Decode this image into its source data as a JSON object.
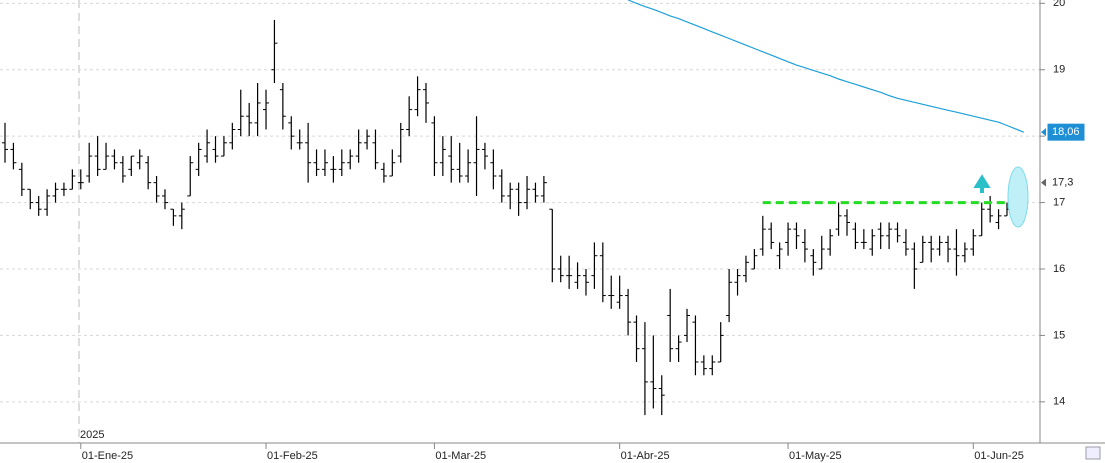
{
  "chart_data": {
    "type": "ohlc",
    "color": "#000000",
    "year_label": "2025",
    "categories": [
      null,
      null,
      null,
      null,
      null,
      null,
      null,
      null,
      null,
      "01-Ene-25",
      null,
      null,
      null,
      null,
      null,
      null,
      null,
      null,
      null,
      null,
      null,
      null,
      null,
      null,
      null,
      null,
      null,
      null,
      null,
      null,
      null,
      "01-Feb-25",
      null,
      null,
      null,
      null,
      null,
      null,
      null,
      null,
      null,
      null,
      null,
      null,
      null,
      null,
      null,
      null,
      null,
      null,
      null,
      "01-Mar-25",
      null,
      null,
      null,
      null,
      null,
      null,
      null,
      null,
      null,
      null,
      null,
      null,
      null,
      null,
      null,
      null,
      null,
      null,
      null,
      null,
      null,
      "01-Abr-25",
      null,
      null,
      null,
      null,
      null,
      null,
      null,
      null,
      null,
      null,
      null,
      null,
      null,
      null,
      null,
      null,
      null,
      null,
      null,
      "01-May-25",
      null,
      null,
      null,
      null,
      null,
      null,
      null,
      null,
      null,
      null,
      null,
      null,
      null,
      null,
      null,
      null,
      null,
      null,
      null,
      null,
      null,
      "01-Jun-25",
      null,
      null,
      null,
      null,
      null,
      null
    ],
    "open": [
      17.9,
      17.8,
      17.5,
      17.2,
      17.0,
      16.9,
      17.1,
      17.2,
      17.2,
      17.3,
      17.4,
      17.7,
      17.5,
      17.7,
      17.6,
      17.5,
      17.6,
      17.6,
      17.3,
      17.1,
      16.9,
      16.8,
      17.1,
      17.5,
      17.7,
      17.8,
      17.7,
      17.9,
      18.1,
      18.3,
      18.2,
      18.4,
      19.0,
      18.7,
      18.2,
      17.9,
      17.9,
      17.6,
      17.5,
      17.5,
      17.5,
      17.6,
      17.7,
      17.9,
      17.9,
      17.5,
      17.4,
      17.7,
      18.1,
      18.4,
      18.7,
      18.2,
      17.6,
      17.7,
      17.5,
      17.4,
      17.6,
      17.8,
      17.6,
      17.4,
      17.1,
      17.2,
      17.0,
      17.2,
      17.1,
      16.9,
      16.0,
      15.9,
      15.8,
      15.9,
      15.9,
      16.2,
      15.6,
      15.5,
      15.6,
      15.2,
      14.8,
      14.3,
      14.2,
      15.3,
      14.8,
      15.0,
      15.2,
      14.6,
      14.5,
      14.6,
      15.3,
      15.8,
      15.9,
      16.0,
      16.3,
      16.6,
      16.2,
      16.4,
      16.6,
      16.4,
      16.2,
      16.0,
      16.3,
      16.6,
      16.8,
      16.6,
      16.4,
      16.3,
      16.6,
      16.5,
      16.6,
      16.4,
      16.3,
      16.1,
      16.4,
      16.3,
      16.4,
      16.3,
      16.2,
      16.3,
      16.5,
      16.9,
      16.7,
      16.8,
      16.9,
      17.0
    ],
    "high": [
      18.2,
      17.9,
      17.6,
      17.2,
      17.1,
      17.2,
      17.3,
      17.3,
      17.5,
      17.5,
      17.9,
      18.0,
      17.9,
      17.8,
      17.7,
      17.7,
      17.8,
      17.7,
      17.4,
      17.2,
      16.9,
      17.0,
      17.7,
      17.9,
      18.1,
      18.0,
      18.0,
      18.2,
      18.7,
      18.5,
      18.8,
      18.7,
      19.75,
      18.8,
      18.3,
      18.1,
      18.2,
      17.8,
      17.8,
      17.7,
      17.8,
      17.8,
      18.1,
      18.1,
      18.1,
      17.6,
      17.8,
      18.2,
      18.6,
      18.9,
      18.8,
      18.3,
      18.0,
      18.0,
      17.9,
      17.8,
      18.3,
      17.9,
      17.8,
      17.5,
      17.3,
      17.3,
      17.4,
      17.3,
      17.4,
      16.9,
      16.2,
      16.2,
      16.1,
      16.0,
      16.4,
      16.4,
      15.9,
      15.9,
      15.7,
      15.3,
      15.2,
      15.0,
      14.4,
      15.7,
      15.0,
      15.4,
      15.3,
      14.7,
      14.7,
      15.2,
      16.0,
      16.0,
      16.2,
      16.3,
      16.8,
      16.7,
      16.4,
      16.7,
      16.7,
      16.6,
      16.3,
      16.5,
      16.6,
      17.0,
      16.9,
      16.7,
      16.6,
      16.6,
      16.7,
      16.7,
      16.7,
      16.6,
      16.4,
      16.5,
      16.5,
      16.5,
      16.5,
      16.6,
      16.4,
      16.6,
      17.0,
      17.1,
      16.9,
      17.0,
      17.1,
      17.3
    ],
    "low": [
      17.6,
      17.5,
      17.1,
      16.9,
      16.8,
      16.8,
      17.0,
      17.1,
      17.2,
      17.2,
      17.3,
      17.4,
      17.5,
      17.5,
      17.3,
      17.4,
      17.5,
      17.2,
      17.0,
      16.9,
      16.65,
      16.6,
      17.1,
      17.4,
      17.6,
      17.6,
      17.7,
      17.8,
      18.0,
      18.0,
      18.0,
      18.1,
      18.8,
      18.1,
      17.8,
      17.8,
      17.3,
      17.4,
      17.4,
      17.3,
      17.4,
      17.5,
      17.6,
      17.8,
      17.5,
      17.3,
      17.4,
      17.6,
      18.0,
      18.3,
      18.2,
      17.4,
      17.4,
      17.3,
      17.3,
      17.3,
      17.1,
      17.5,
      17.2,
      17.0,
      16.9,
      16.8,
      16.9,
      17.0,
      17.0,
      15.8,
      15.8,
      15.7,
      15.7,
      15.6,
      15.7,
      15.5,
      15.4,
      15.4,
      15.0,
      14.6,
      13.8,
      13.9,
      13.8,
      14.6,
      14.6,
      14.9,
      14.4,
      14.4,
      14.4,
      14.6,
      15.2,
      15.6,
      15.8,
      16.0,
      16.2,
      16.3,
      16.0,
      16.2,
      16.3,
      16.1,
      15.9,
      16.0,
      16.2,
      16.5,
      16.5,
      16.3,
      16.3,
      16.2,
      16.3,
      16.3,
      16.4,
      16.2,
      15.7,
      16.1,
      16.1,
      16.2,
      16.1,
      15.9,
      16.1,
      16.2,
      16.5,
      16.7,
      16.6,
      16.8,
      16.8,
      16.9
    ],
    "close": [
      17.8,
      17.6,
      17.2,
      17.0,
      16.9,
      17.1,
      17.2,
      17.2,
      17.4,
      17.3,
      17.7,
      17.5,
      17.7,
      17.6,
      17.4,
      17.7,
      17.7,
      17.3,
      17.1,
      17.0,
      16.8,
      16.9,
      17.6,
      17.8,
      17.9,
      17.7,
      17.9,
      18.1,
      18.3,
      18.2,
      18.5,
      18.5,
      19.4,
      18.3,
      18.0,
      17.9,
      17.6,
      17.5,
      17.6,
      17.5,
      17.6,
      17.7,
      17.9,
      18.0,
      17.6,
      17.4,
      17.6,
      18.1,
      18.4,
      18.7,
      18.5,
      17.6,
      17.8,
      17.5,
      17.4,
      17.6,
      17.8,
      17.7,
      17.4,
      17.1,
      17.2,
      17.0,
      17.2,
      17.1,
      17.3,
      16.0,
      15.9,
      15.9,
      15.9,
      15.8,
      16.2,
      15.6,
      15.6,
      15.6,
      15.2,
      14.8,
      14.3,
      14.2,
      14.1,
      14.8,
      14.9,
      15.3,
      14.6,
      14.5,
      14.6,
      15.0,
      15.8,
      15.9,
      16.1,
      16.2,
      16.6,
      16.4,
      16.3,
      16.6,
      16.5,
      16.3,
      16.1,
      16.3,
      16.5,
      16.8,
      16.7,
      16.4,
      16.4,
      16.5,
      16.5,
      16.6,
      16.5,
      16.3,
      16.0,
      16.4,
      16.3,
      16.4,
      16.3,
      16.2,
      16.3,
      16.5,
      16.9,
      16.8,
      16.8,
      16.9,
      17.0,
      17.3
    ],
    "moving_average": {
      "color": "#1ea0d8",
      "values": [
        null,
        null,
        null,
        null,
        null,
        null,
        null,
        null,
        null,
        null,
        null,
        null,
        null,
        null,
        null,
        null,
        null,
        null,
        null,
        null,
        null,
        null,
        null,
        null,
        null,
        null,
        null,
        null,
        null,
        null,
        null,
        null,
        null,
        null,
        null,
        null,
        null,
        null,
        null,
        null,
        null,
        null,
        null,
        null,
        null,
        null,
        null,
        null,
        null,
        null,
        null,
        null,
        null,
        null,
        null,
        null,
        null,
        null,
        null,
        null,
        null,
        null,
        null,
        null,
        null,
        null,
        null,
        null,
        null,
        null,
        null,
        null,
        null,
        null,
        20.05,
        20.0,
        19.95,
        19.91,
        19.86,
        19.81,
        19.77,
        19.72,
        19.67,
        19.62,
        19.57,
        19.52,
        19.47,
        19.42,
        19.37,
        19.32,
        19.27,
        19.22,
        19.17,
        19.12,
        19.07,
        19.03,
        18.99,
        18.95,
        18.91,
        18.86,
        18.82,
        18.78,
        18.74,
        18.7,
        18.66,
        18.61,
        18.57,
        18.54,
        18.51,
        18.48,
        18.45,
        18.42,
        18.39,
        18.36,
        18.33,
        18.3,
        18.27,
        18.24,
        18.21,
        18.16,
        18.11,
        18.06
      ]
    },
    "resistance": {
      "value": 17,
      "start": 90,
      "end": 121,
      "color": "#22dd22"
    },
    "price_tags": [
      {
        "value": 18.06,
        "label": "18,06",
        "color": "#1e8fd5"
      },
      {
        "value": 17.3,
        "label": "17,3",
        "color": "#ffffff"
      }
    ],
    "ylim": [
      13.38,
      20.05
    ],
    "yticks": [
      14,
      15,
      16,
      17,
      18,
      19,
      20
    ],
    "grid": true
  }
}
